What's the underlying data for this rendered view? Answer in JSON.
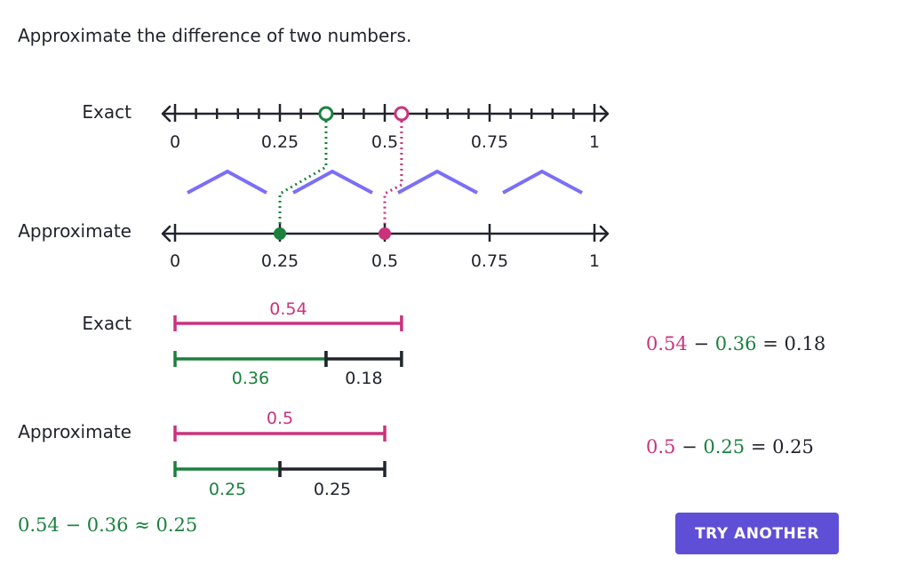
{
  "instruction": "Approximate the difference of two numbers.",
  "labels": {
    "exact": "Exact",
    "approximate": "Approximate"
  },
  "number_line_ticks": [
    "0",
    "0.25",
    "0.5",
    "0.75",
    "1"
  ],
  "exact_bars": {
    "total": "0.54",
    "part": "0.36",
    "difference": "0.18"
  },
  "approx_bars": {
    "total": "0.5",
    "part": "0.25",
    "difference": "0.25"
  },
  "equations": {
    "exact": {
      "a": "0.54",
      "op": "−",
      "b": "0.36",
      "eq": "=",
      "result": "0.18"
    },
    "approx": {
      "a": "0.5",
      "op": "−",
      "b": "0.25",
      "eq": "=",
      "result": "0.25"
    },
    "summary": {
      "a": "0.54",
      "op": "−",
      "b": "0.36",
      "eq": "≈",
      "result": "0.25"
    }
  },
  "button": {
    "label": "TRY ANOTHER"
  },
  "values": {
    "exact_a": 0.54,
    "exact_b": 0.36,
    "approx_a": 0.5,
    "approx_b": 0.25
  },
  "colors": {
    "pink": "#ca337c",
    "green": "#1b813e",
    "purple": "#7b6ef7",
    "button": "#5f4fd6",
    "ink": "#21242c"
  }
}
